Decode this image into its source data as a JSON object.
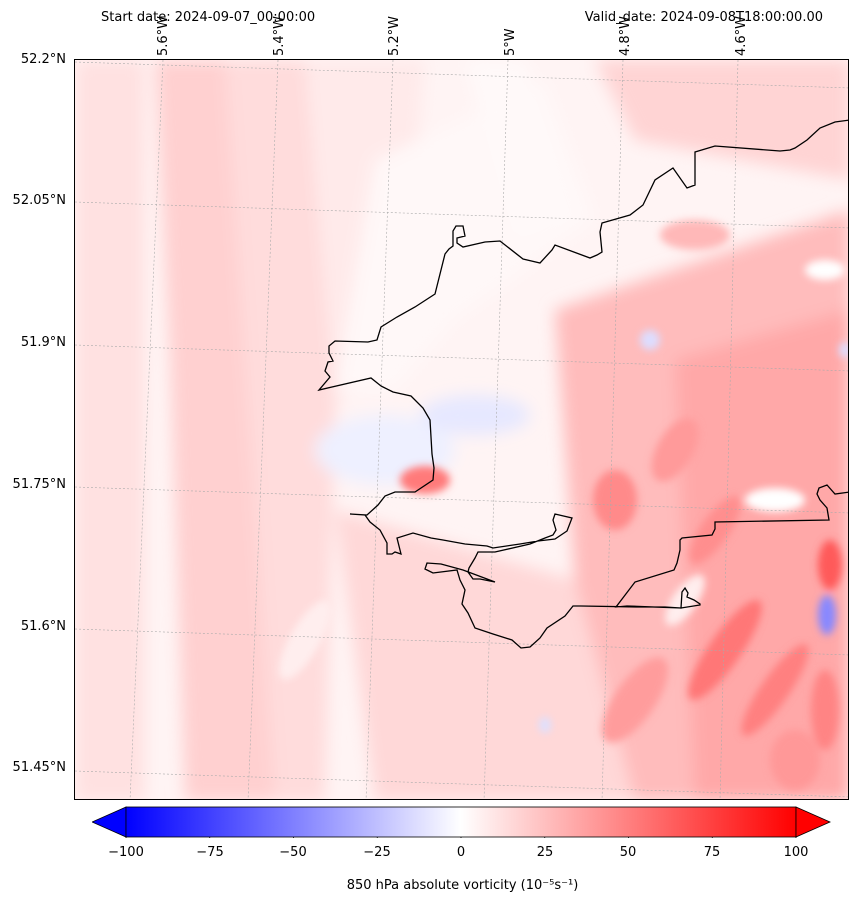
{
  "header": {
    "start_date": "Start date: 2024-09-07_00:00:00",
    "valid_date": "Valid_date: 2024-09-08T18:00:00.00"
  },
  "axes": {
    "lon_labels": [
      "5.6°W",
      "5.4°W",
      "5.2°W",
      "5°W",
      "4.8°W",
      "4.6°W"
    ],
    "lat_labels": [
      "52.2°N",
      "52.05°N",
      "51.9°N",
      "51.75°N",
      "51.6°N",
      "51.45°N"
    ]
  },
  "colorbar": {
    "ticks": [
      "−100",
      "−75",
      "−50",
      "−25",
      "0",
      "25",
      "50",
      "75",
      "100"
    ],
    "title": "850 hPa absolute vorticity (10⁻⁵s⁻¹)",
    "min_color": "#0000ff",
    "mid_color": "#ffffff",
    "max_color": "#ff0000"
  },
  "map": {
    "field": "850 hPa absolute vorticity",
    "colormap": "bwr",
    "coastline_color": "#000000",
    "gridlines": true
  }
}
